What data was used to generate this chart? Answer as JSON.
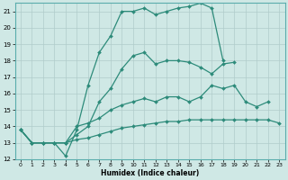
{
  "title": "",
  "xlabel": "Humidex (Indice chaleur)",
  "ylabel": "",
  "bg_color": "#cfe8e5",
  "grid_color": "#b8d8d5",
  "line_color": "#2d8b7a",
  "xlim": [
    -0.5,
    23.5
  ],
  "ylim": [
    12,
    21.5
  ],
  "xticks": [
    0,
    1,
    2,
    3,
    4,
    5,
    6,
    7,
    8,
    9,
    10,
    11,
    12,
    13,
    14,
    15,
    16,
    17,
    18,
    19,
    20,
    21,
    22,
    23
  ],
  "yticks": [
    12,
    13,
    14,
    15,
    16,
    17,
    18,
    19,
    20,
    21
  ],
  "lines": [
    {
      "x": [
        0,
        1,
        2,
        3,
        4,
        5,
        6,
        7,
        8,
        9,
        10,
        11,
        12,
        13,
        14,
        15,
        16,
        17,
        18
      ],
      "y": [
        13.8,
        13.0,
        13.0,
        13.0,
        12.2,
        13.8,
        16.5,
        18.5,
        19.5,
        21.0,
        21.0,
        21.2,
        20.8,
        21.0,
        21.2,
        21.3,
        21.5,
        21.2,
        18.0
      ],
      "marker": "D",
      "markersize": 2.0,
      "linewidth": 0.9
    },
    {
      "x": [
        0,
        1,
        2,
        3,
        4,
        5,
        6,
        7,
        8,
        9,
        10,
        11,
        12,
        13,
        14,
        15,
        16,
        17,
        18,
        19
      ],
      "y": [
        13.8,
        13.0,
        13.0,
        13.0,
        13.0,
        13.5,
        14.0,
        15.5,
        16.3,
        17.5,
        18.3,
        18.5,
        17.8,
        18.0,
        18.0,
        17.9,
        17.6,
        17.2,
        17.8,
        17.9
      ],
      "marker": "D",
      "markersize": 2.0,
      "linewidth": 0.9
    },
    {
      "x": [
        0,
        1,
        2,
        3,
        4,
        5,
        6,
        7,
        8,
        9,
        10,
        11,
        12,
        13,
        14,
        15,
        16,
        17,
        18,
        19,
        20,
        21,
        22
      ],
      "y": [
        13.8,
        13.0,
        13.0,
        13.0,
        13.0,
        14.0,
        14.2,
        14.5,
        15.0,
        15.3,
        15.5,
        15.7,
        15.5,
        15.8,
        15.8,
        15.5,
        15.8,
        16.5,
        16.3,
        16.5,
        15.5,
        15.2,
        15.5
      ],
      "marker": "D",
      "markersize": 2.0,
      "linewidth": 0.9
    },
    {
      "x": [
        0,
        1,
        2,
        3,
        4,
        5,
        6,
        7,
        8,
        9,
        10,
        11,
        12,
        13,
        14,
        15,
        16,
        17,
        18,
        19,
        20,
        21,
        22,
        23
      ],
      "y": [
        13.8,
        13.0,
        13.0,
        13.0,
        13.0,
        13.2,
        13.3,
        13.5,
        13.7,
        13.9,
        14.0,
        14.1,
        14.2,
        14.3,
        14.3,
        14.4,
        14.4,
        14.4,
        14.4,
        14.4,
        14.4,
        14.4,
        14.4,
        14.2
      ],
      "marker": "D",
      "markersize": 2.0,
      "linewidth": 0.9
    }
  ]
}
